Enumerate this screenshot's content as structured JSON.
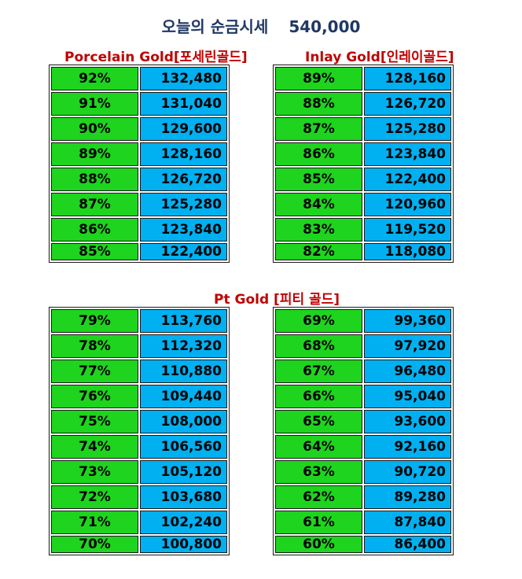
{
  "header": {
    "title": "오늘의 순금시세",
    "price": "540,000"
  },
  "porcelain": {
    "title": "Porcelain Gold[포세린골드]",
    "rows": [
      {
        "pct": "92%",
        "val": "132,480"
      },
      {
        "pct": "91%",
        "val": "131,040"
      },
      {
        "pct": "90%",
        "val": "129,600"
      },
      {
        "pct": "89%",
        "val": "128,160"
      },
      {
        "pct": "88%",
        "val": "126,720"
      },
      {
        "pct": "87%",
        "val": "125,280"
      },
      {
        "pct": "86%",
        "val": "123,840"
      },
      {
        "pct": "85%",
        "val": "122,400"
      }
    ]
  },
  "inlay": {
    "title": "Inlay Gold[인레이골드]",
    "rows": [
      {
        "pct": "89%",
        "val": "128,160"
      },
      {
        "pct": "88%",
        "val": "126,720"
      },
      {
        "pct": "87%",
        "val": "125,280"
      },
      {
        "pct": "86%",
        "val": "123,840"
      },
      {
        "pct": "85%",
        "val": "122,400"
      },
      {
        "pct": "84%",
        "val": "120,960"
      },
      {
        "pct": "83%",
        "val": "119,520"
      },
      {
        "pct": "82%",
        "val": "118,080"
      }
    ]
  },
  "pt": {
    "title": "Pt Gold [피티 골드]",
    "left_rows": [
      {
        "pct": "79%",
        "val": "113,760"
      },
      {
        "pct": "78%",
        "val": "112,320"
      },
      {
        "pct": "77%",
        "val": "110,880"
      },
      {
        "pct": "76%",
        "val": "109,440"
      },
      {
        "pct": "75%",
        "val": "108,000"
      },
      {
        "pct": "74%",
        "val": "106,560"
      },
      {
        "pct": "73%",
        "val": "105,120"
      },
      {
        "pct": "72%",
        "val": "103,680"
      },
      {
        "pct": "71%",
        "val": "102,240"
      },
      {
        "pct": "70%",
        "val": "100,800"
      }
    ],
    "right_rows": [
      {
        "pct": "69%",
        "val": "99,360"
      },
      {
        "pct": "68%",
        "val": "97,920"
      },
      {
        "pct": "67%",
        "val": "96,480"
      },
      {
        "pct": "66%",
        "val": "95,040"
      },
      {
        "pct": "65%",
        "val": "93,600"
      },
      {
        "pct": "64%",
        "val": "92,160"
      },
      {
        "pct": "63%",
        "val": "90,720"
      },
      {
        "pct": "62%",
        "val": "89,280"
      },
      {
        "pct": "61%",
        "val": "87,840"
      },
      {
        "pct": "60%",
        "val": "86,400"
      }
    ]
  }
}
